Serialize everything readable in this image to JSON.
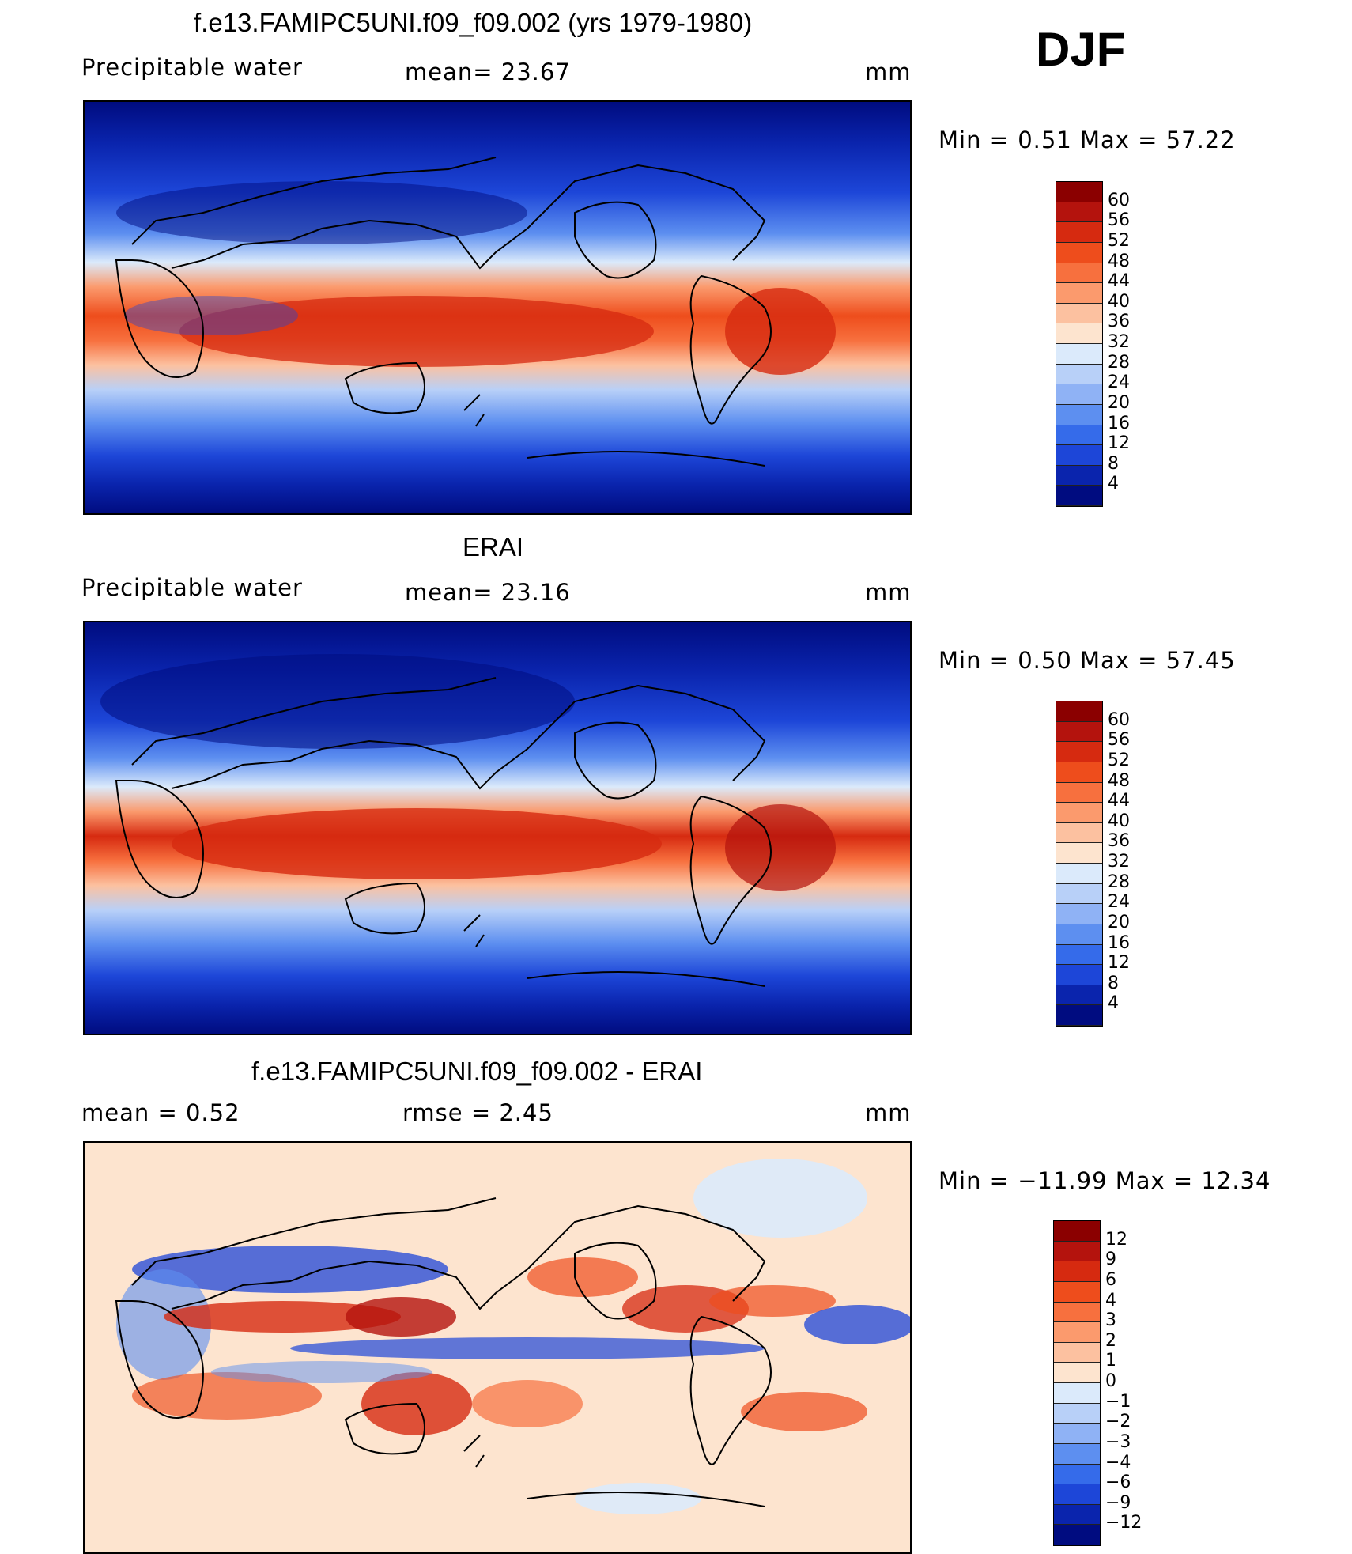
{
  "season": "DJF",
  "panels": [
    {
      "title": "f.e13.FAMIPC5UNI.f09_f09.002 (yrs 1979-1980)",
      "left_label": "Precipitable  water",
      "mid_label": "mean=   23.67",
      "units": "mm",
      "minmax": "Min  =     0.51  Max  =    57.22",
      "colorbar_labels": [
        "60",
        "56",
        "52",
        "48",
        "44",
        "40",
        "36",
        "32",
        "28",
        "24",
        "20",
        "16",
        "12",
        "8",
        "4"
      ],
      "colorbar_colors": [
        "#8b0000",
        "#b4130d",
        "#d62a10",
        "#ee4d1c",
        "#f7703e",
        "#fb9a6d",
        "#fcc1a0",
        "#fde4cf",
        "#dbeafb",
        "#b8d0f8",
        "#8fb2f5",
        "#5d8ff0",
        "#356bea",
        "#1d46d8",
        "#0a24ad",
        "#000c80"
      ]
    },
    {
      "title": "ERAI",
      "left_label": "Precipitable  water",
      "mid_label": "mean=   23.16",
      "units": "mm",
      "minmax": "Min  =     0.50  Max  =    57.45",
      "colorbar_labels": [
        "60",
        "56",
        "52",
        "48",
        "44",
        "40",
        "36",
        "32",
        "28",
        "24",
        "20",
        "16",
        "12",
        "8",
        "4"
      ],
      "colorbar_colors": [
        "#8b0000",
        "#b4130d",
        "#d62a10",
        "#ee4d1c",
        "#f7703e",
        "#fb9a6d",
        "#fcc1a0",
        "#fde4cf",
        "#dbeafb",
        "#b8d0f8",
        "#8fb2f5",
        "#5d8ff0",
        "#356bea",
        "#1d46d8",
        "#0a24ad",
        "#000c80"
      ]
    },
    {
      "title": "f.e13.FAMIPC5UNI.f09_f09.002 - ERAI",
      "left_label": "mean  =     0.52",
      "mid_label": "rmse  =     2.45",
      "units": "mm",
      "minmax": "Min  = −11.99  Max  =    12.34",
      "colorbar_labels": [
        "12",
        "9",
        "6",
        "4",
        "3",
        "2",
        "1",
        "0",
        "−1",
        "−2",
        "−3",
        "−4",
        "−6",
        "−9",
        "−12"
      ],
      "colorbar_colors": [
        "#8b0000",
        "#b4130d",
        "#d62a10",
        "#ee4d1c",
        "#f7703e",
        "#fb9a6d",
        "#fcc1a0",
        "#fde4cf",
        "#dbeafb",
        "#b8d0f8",
        "#8fb2f5",
        "#5d8ff0",
        "#356bea",
        "#1d46d8",
        "#0a24ad",
        "#000c80"
      ]
    }
  ]
}
